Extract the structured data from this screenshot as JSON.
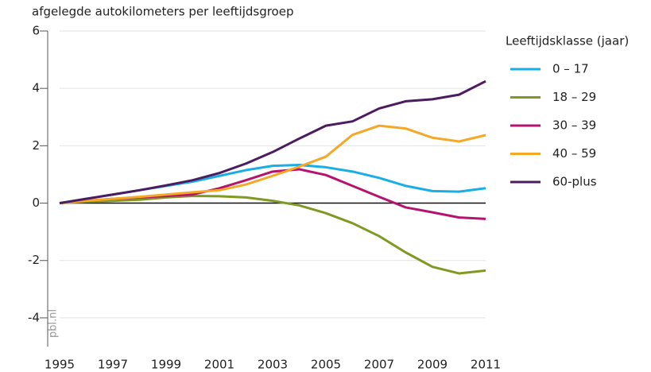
{
  "chart_data": {
    "type": "line",
    "title": "afgelegde autokilometers per leeftijdsgroep",
    "legend_title": "Leeftijdsklasse (jaar)",
    "source": "pbl.nl",
    "x": [
      1995,
      1996,
      1997,
      1998,
      1999,
      2000,
      2001,
      2002,
      2003,
      2004,
      2005,
      2006,
      2007,
      2008,
      2009,
      2010,
      2011
    ],
    "xlim": [
      1995,
      2011
    ],
    "xticks": [
      1995,
      1997,
      1999,
      2001,
      2003,
      2005,
      2007,
      2009,
      2011
    ],
    "ylim": [
      -5,
      6
    ],
    "yticks": [
      -4,
      -2,
      0,
      2,
      4,
      6
    ],
    "grid": true,
    "legend": "right",
    "series": [
      {
        "name": "0 – 17",
        "color": "#1aaee6",
        "values": [
          0,
          0.15,
          0.3,
          0.45,
          0.6,
          0.75,
          0.95,
          1.15,
          1.3,
          1.33,
          1.25,
          1.1,
          0.88,
          0.6,
          0.42,
          0.4,
          0.52
        ]
      },
      {
        "name": "18 – 29",
        "color": "#7f9a22",
        "values": [
          0,
          0.05,
          0.08,
          0.12,
          0.2,
          0.25,
          0.24,
          0.2,
          0.08,
          -0.08,
          -0.35,
          -0.7,
          -1.15,
          -1.72,
          -2.22,
          -2.45,
          -2.35
        ]
      },
      {
        "name": "30 – 39",
        "color": "#b5146e",
        "values": [
          0,
          0.08,
          0.15,
          0.2,
          0.25,
          0.3,
          0.52,
          0.8,
          1.1,
          1.18,
          0.98,
          0.6,
          0.22,
          -0.15,
          -0.32,
          -0.5,
          -0.55
        ]
      },
      {
        "name": "40 – 59",
        "color": "#f5a826",
        "values": [
          0,
          0.08,
          0.15,
          0.22,
          0.3,
          0.38,
          0.45,
          0.65,
          0.95,
          1.27,
          1.62,
          2.38,
          2.7,
          2.6,
          2.28,
          2.15,
          2.37
        ]
      },
      {
        "name": "60-plus",
        "color": "#4b1c5f",
        "values": [
          0,
          0.15,
          0.3,
          0.45,
          0.62,
          0.8,
          1.05,
          1.38,
          1.78,
          2.25,
          2.7,
          2.85,
          3.3,
          3.55,
          3.62,
          3.78,
          4.25
        ]
      }
    ]
  }
}
